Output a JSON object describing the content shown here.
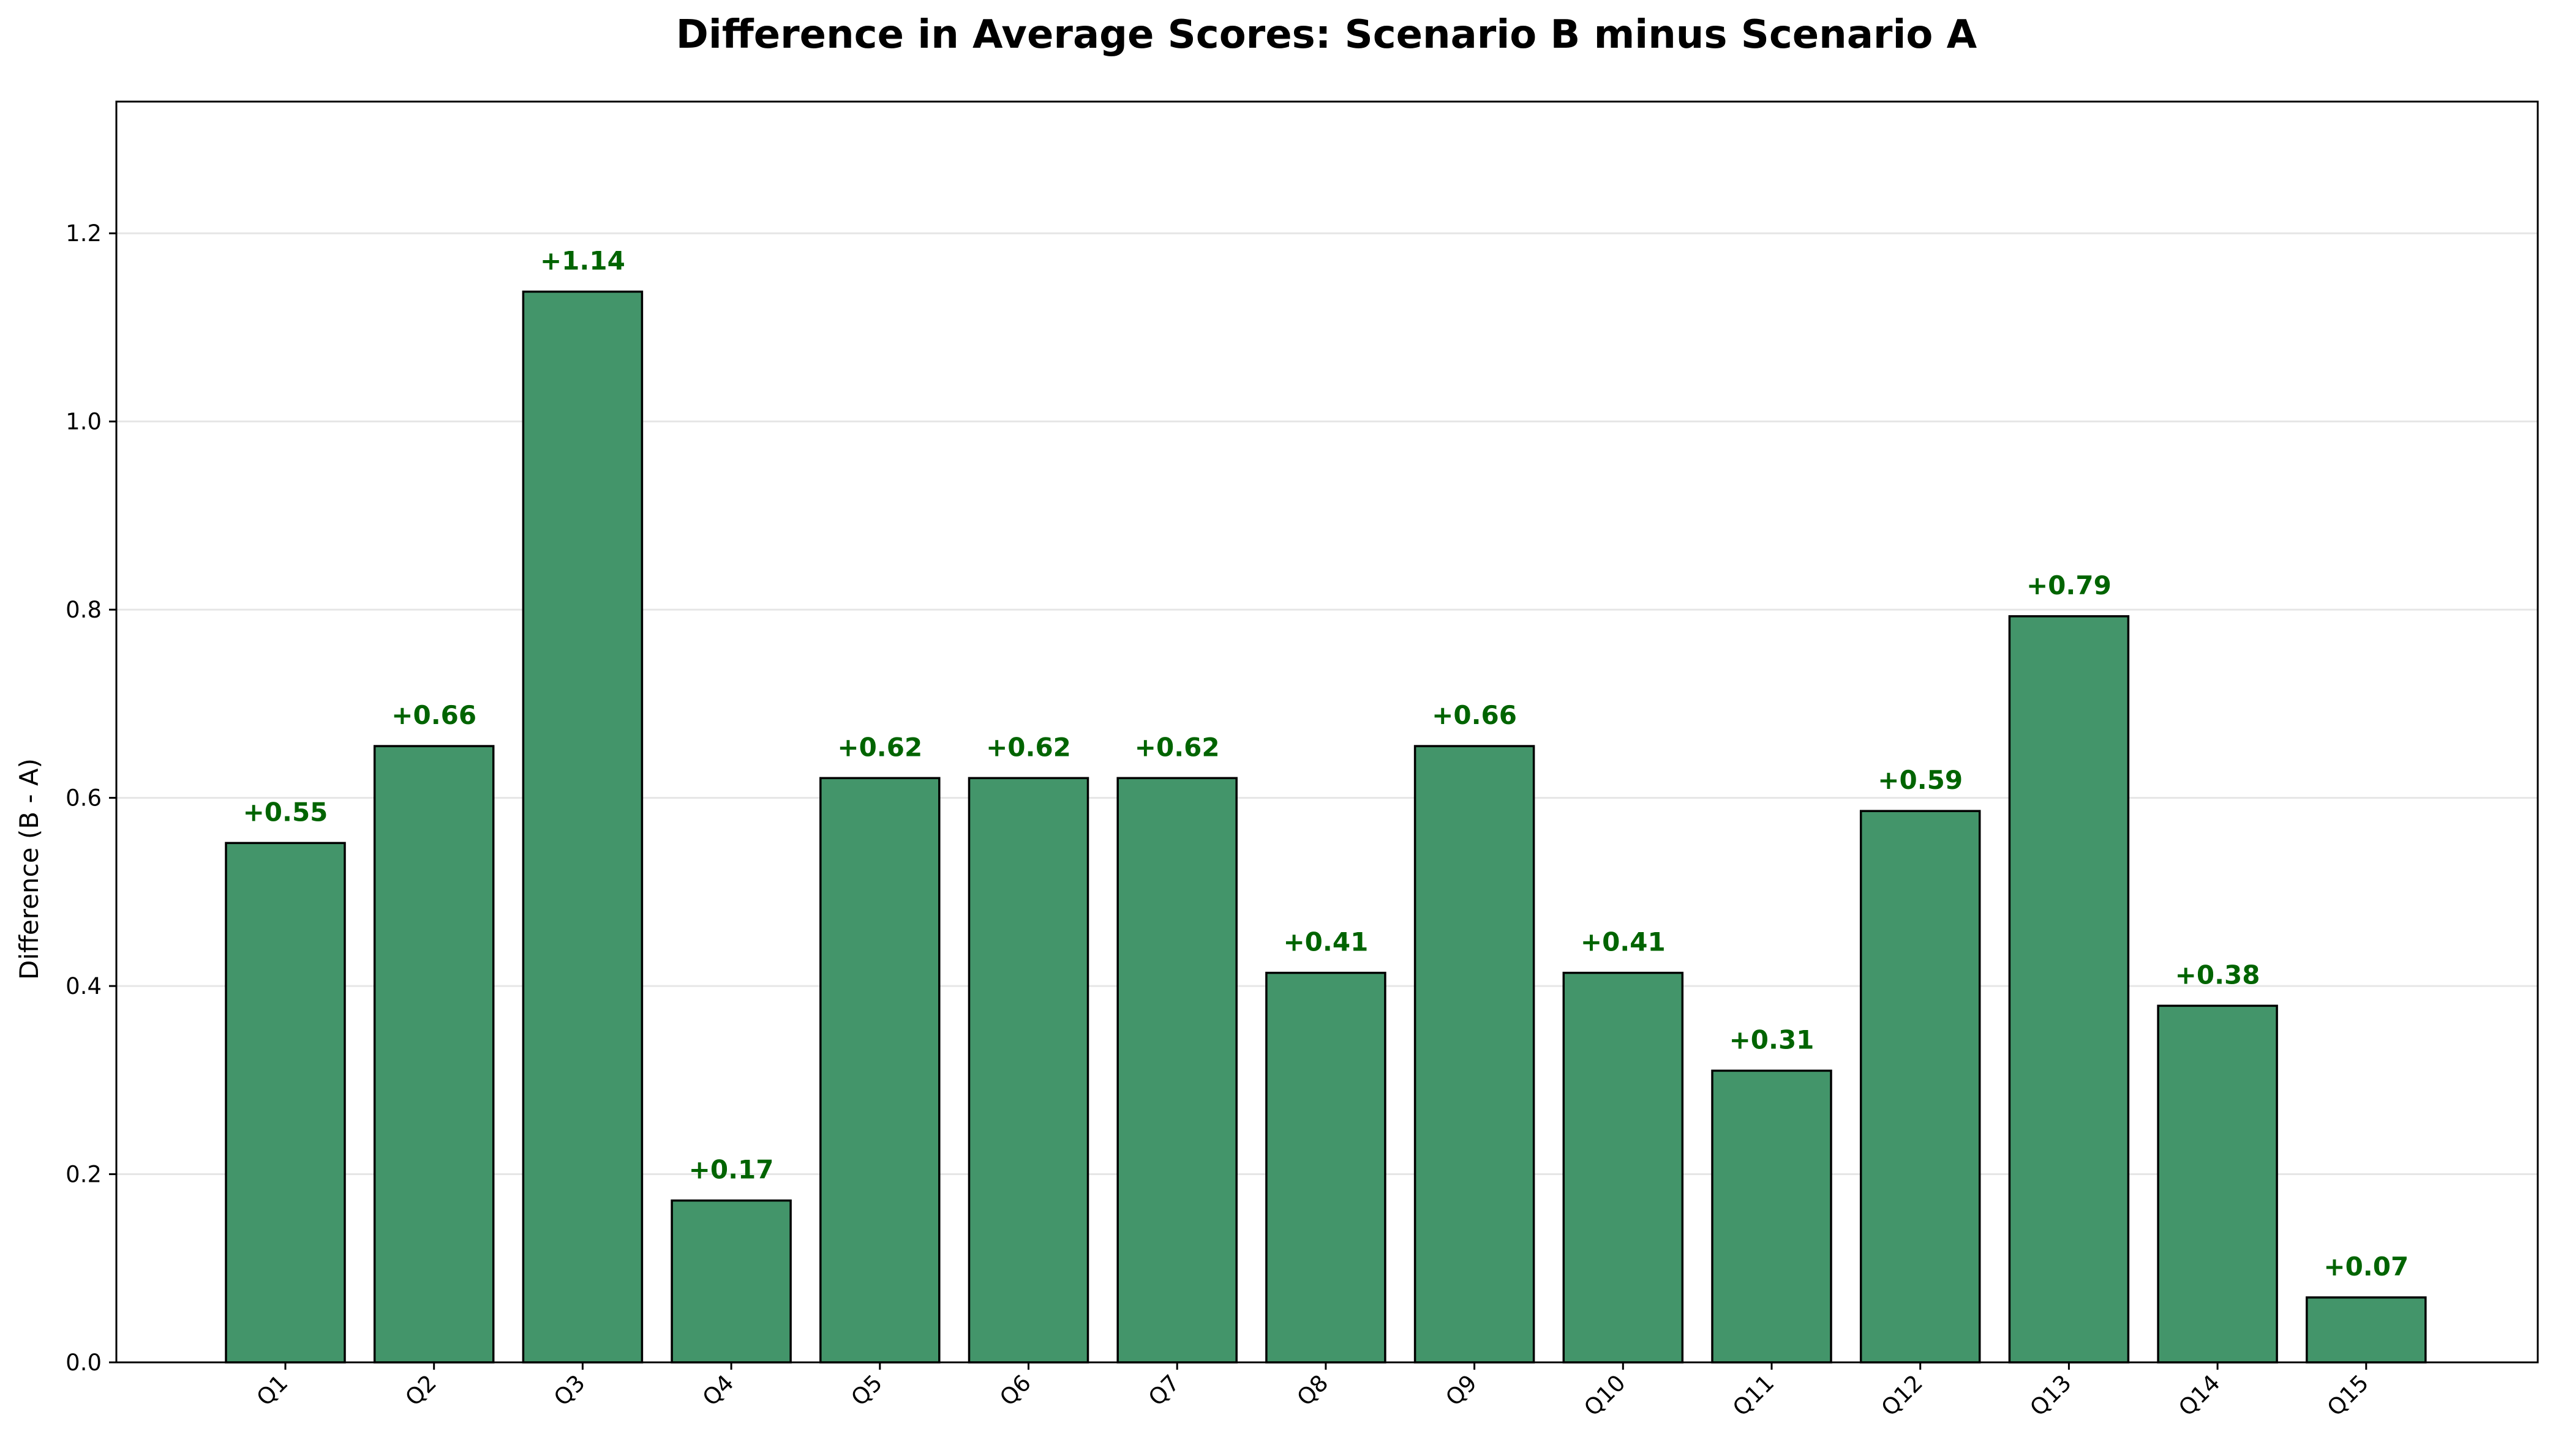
{
  "chart_data": {
    "type": "bar",
    "title": "Difference in Average Scores: Scenario B minus Scenario A",
    "xlabel": "",
    "ylabel": "Difference (B - A)",
    "ylim": [
      0,
      1.34
    ],
    "yticks": [
      0.0,
      0.2,
      0.4,
      0.6,
      0.8,
      1.0,
      1.2
    ],
    "ytick_labels": [
      "0.0",
      "0.2",
      "0.4",
      "0.6",
      "0.8",
      "1.0",
      "1.2"
    ],
    "grid": "horizontal",
    "categories": [
      "Q1",
      "Q2",
      "Q3",
      "Q4",
      "Q5",
      "Q6",
      "Q7",
      "Q8",
      "Q9",
      "Q10",
      "Q11",
      "Q12",
      "Q13",
      "Q14",
      "Q15"
    ],
    "values": [
      0.552,
      0.655,
      1.138,
      0.172,
      0.621,
      0.621,
      0.621,
      0.414,
      0.655,
      0.414,
      0.31,
      0.586,
      0.793,
      0.379,
      0.069
    ],
    "data_labels": [
      "+0.55",
      "+0.66",
      "+1.14",
      "+0.17",
      "+0.62",
      "+0.62",
      "+0.62",
      "+0.41",
      "+0.66",
      "+0.41",
      "+0.31",
      "+0.59",
      "+0.79",
      "+0.38",
      "+0.07"
    ],
    "colors": {
      "bar_fill": "#43956a",
      "bar_edge": "#000000",
      "label_text": "#006400",
      "grid": "#e6e6e6"
    }
  }
}
